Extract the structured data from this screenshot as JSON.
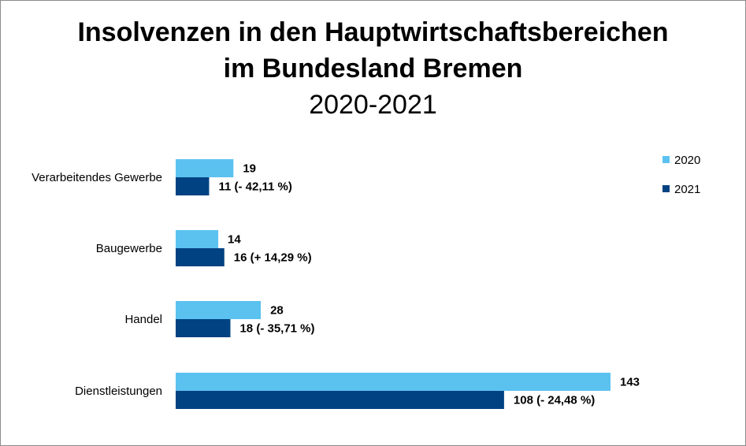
{
  "chart_data": {
    "type": "bar",
    "orientation": "horizontal",
    "title_line1": "Insolvenzen in den Hauptwirtschaftsbereichen",
    "title_line2": "im Bundesland Bremen",
    "subtitle": "2020-2021",
    "categories": [
      "Verarbeitendes Gewerbe",
      "Baugewerbe",
      "Handel",
      "Dienstleistungen"
    ],
    "series": [
      {
        "name": "2020",
        "color": "#5bc2f0",
        "values": [
          19,
          14,
          28,
          143
        ],
        "labels": [
          "19",
          "14",
          "28",
          "143"
        ]
      },
      {
        "name": "2021",
        "color": "#004282",
        "values": [
          11,
          16,
          18,
          108
        ],
        "labels": [
          "11 (- 42,11 %)",
          "16 (+ 14,29 %)",
          "18 (- 35,71 %)",
          "108 (- 24,48 %)"
        ]
      }
    ],
    "xlim": [
      0,
      143
    ],
    "grid": false,
    "legend_position": "top-right"
  }
}
